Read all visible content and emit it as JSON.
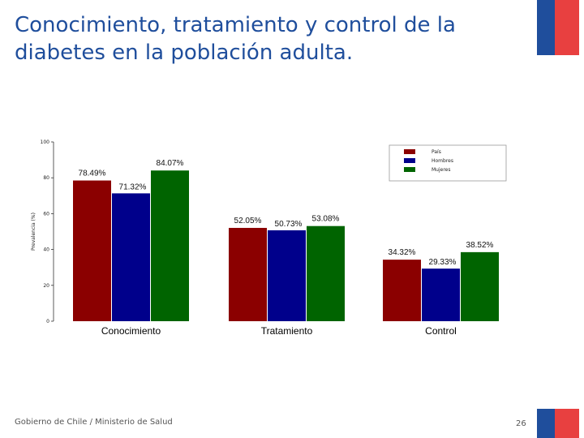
{
  "slide": {
    "title_line1": "Conocimiento, tratamiento y control de la",
    "title_line2": "diabetes en la población adulta.",
    "footer": "Gobierno de Chile / Ministerio de Salud",
    "page_number": "26",
    "title_color": "#1f4e9c",
    "flag_blue": "#1f4e9c",
    "flag_red": "#e84040"
  },
  "chart_data": {
    "type": "bar",
    "title": "",
    "xlabel": "",
    "ylabel": "Prevalencia (%)",
    "ylim": [
      0,
      100
    ],
    "yticks": [
      0,
      20,
      40,
      60,
      80,
      100
    ],
    "categories": [
      "Conocimiento",
      "Tratamiento",
      "Control"
    ],
    "series": [
      {
        "name": "País",
        "color": "#8b0000",
        "values": [
          78.49,
          52.05,
          34.32
        ],
        "labels": [
          "78.49%",
          "52.05%",
          "34.32%"
        ]
      },
      {
        "name": "Hombres",
        "color": "#00008b",
        "values": [
          71.32,
          50.73,
          29.33
        ],
        "labels": [
          "71.32%",
          "50.73%",
          "29.33%"
        ]
      },
      {
        "name": "Mujeres",
        "color": "#006400",
        "values": [
          84.07,
          53.08,
          38.52
        ],
        "labels": [
          "84.07%",
          "53.08%",
          "38.52%"
        ]
      }
    ],
    "legend_position": "top-right",
    "grid": false
  }
}
